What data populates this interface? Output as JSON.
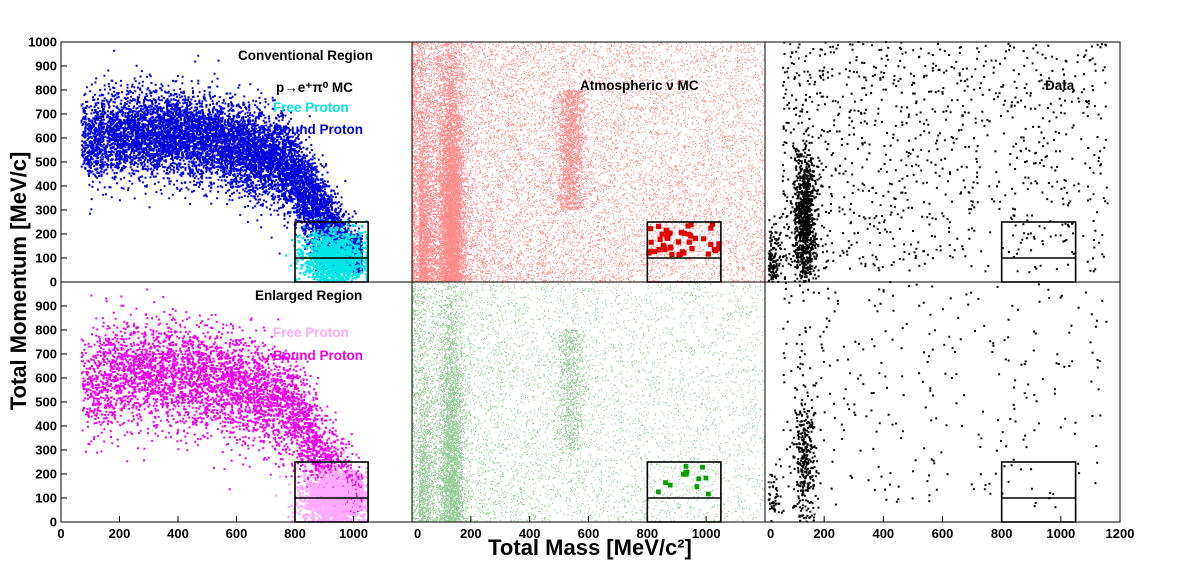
{
  "chart_data": {
    "type": "scatter",
    "xlabel": "Total Mass [MeV/c²]",
    "ylabel": "Total Momentum [MeV/c]",
    "xlim_per_column": [
      [
        0,
        1200
      ],
      [
        0,
        1200
      ],
      [
        0,
        1200
      ]
    ],
    "ylim": [
      0,
      1000
    ],
    "x_ticks": [
      0,
      200,
      400,
      600,
      800,
      1000
    ],
    "x_ticks_last_column": [
      0,
      200,
      400,
      600,
      800,
      1000,
      1200
    ],
    "y_ticks_top": [
      0,
      100,
      200,
      300,
      400,
      500,
      600,
      700,
      800,
      900,
      1000
    ],
    "y_ticks_bottom": [
      0,
      100,
      200,
      300,
      400,
      500,
      600,
      700,
      800,
      900
    ],
    "signal_box": {
      "x_range": [
        800,
        1050
      ],
      "y_range": [
        0,
        250
      ],
      "y_split": 100
    },
    "panels": [
      {
        "id": "top-left",
        "row": 0,
        "col": 0,
        "annotations": [
          "Conventional Region",
          "p→e⁺π⁰ MC"
        ],
        "legend": [
          {
            "label": "Free Proton",
            "color": "#00e5e5"
          },
          {
            "label": "Bound Proton",
            "color": "#0000dd"
          }
        ],
        "series": [
          {
            "name": "Bound Proton",
            "color": "#0000dd",
            "shape": "arc band",
            "center_mass_range": [
              100,
              1000
            ],
            "momentum_peak": 600,
            "approx_points": 9000
          },
          {
            "name": "Free Proton",
            "color": "#00e5e5",
            "shape": "cluster",
            "mass_center": 930,
            "momentum_center": 120,
            "approx_points": 1500
          }
        ]
      },
      {
        "id": "top-middle",
        "row": 0,
        "col": 1,
        "annotations": [
          "Atmospheric ν MC"
        ],
        "series": [
          {
            "name": "Atmospheric MC",
            "color": "#ff0000",
            "shape": "diffuse with π⁰ peak at 135 MeV/c²"
          },
          {
            "name": "Selected events",
            "color": "#e00000",
            "shape": "large markers in box",
            "approx_points": 45
          }
        ]
      },
      {
        "id": "top-right",
        "row": 0,
        "col": 2,
        "annotations": [
          "Data"
        ],
        "series": [
          {
            "name": "Data",
            "color": "#000000",
            "shape": "sparse with π⁰ peak",
            "approx_points": 2100
          }
        ]
      },
      {
        "id": "bottom-left",
        "row": 1,
        "col": 0,
        "annotations": [
          "Enlarged Region"
        ],
        "legend": [
          {
            "label": "Free Proton",
            "color": "#ffaaff"
          },
          {
            "label": "Bound Proton",
            "color": "#ee00ee"
          }
        ],
        "series": [
          {
            "name": "Bound Proton",
            "color": "#ee00ee",
            "shape": "arc band",
            "approx_points": 5000
          },
          {
            "name": "Free Proton",
            "color": "#ffc0ff",
            "shape": "cluster",
            "mass_center": 930,
            "momentum_center": 120
          }
        ]
      },
      {
        "id": "bottom-middle",
        "row": 1,
        "col": 1,
        "series": [
          {
            "name": "Atmospheric MC",
            "color": "#2e9a2e",
            "shape": "diffuse with π⁰ peak"
          },
          {
            "name": "Selected events",
            "color": "#00a000",
            "shape": "large markers in box",
            "approx_points": 13
          }
        ]
      },
      {
        "id": "bottom-right",
        "row": 1,
        "col": 2,
        "series": [
          {
            "name": "Data",
            "color": "#000000",
            "shape": "sparse with π⁰ peak",
            "approx_points": 700
          }
        ]
      }
    ]
  },
  "colors": {
    "blue_bound": "#0000dd",
    "cyan_free": "#00e5e5",
    "red_mc": "#ff0000",
    "green_mc": "#2e9a2e",
    "magenta_bound": "#ee00ee",
    "pink_free": "#ffaaff",
    "black_data": "#000000"
  }
}
